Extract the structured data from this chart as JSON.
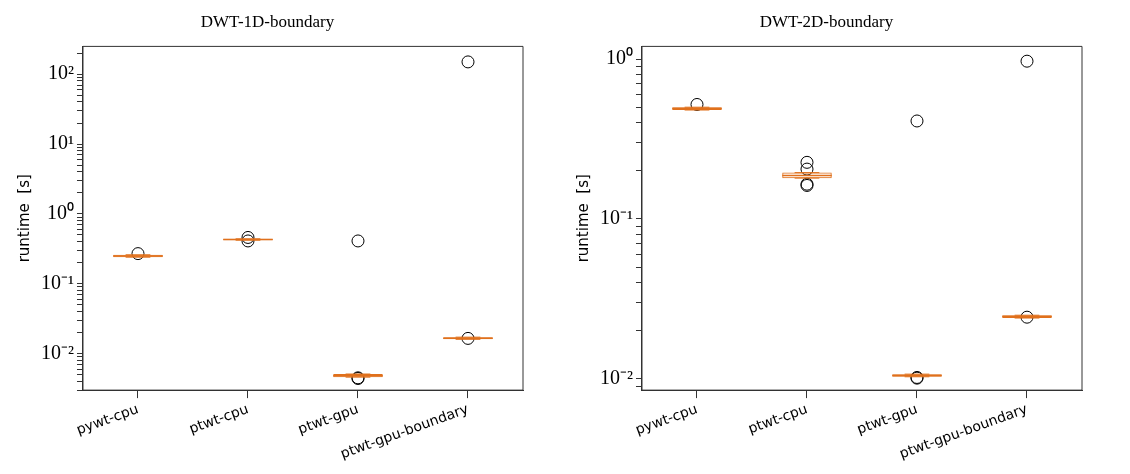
{
  "chart_data": [
    {
      "type": "box",
      "title": "DWT-1D-boundary",
      "ylabel": "runtime  [s]",
      "categories": [
        "pywt-cpu",
        "ptwt-cpu",
        "ptwt-gpu",
        "ptwt-gpu-boundary"
      ],
      "log": true,
      "grid": false,
      "legend": false,
      "ylim": [
        0.003,
        250
      ],
      "yticks": [
        {
          "value": 0.003,
          "label": null
        },
        {
          "value": 0.004,
          "label": null
        },
        {
          "value": 0.005,
          "label": null
        },
        {
          "value": 0.006,
          "label": null
        },
        {
          "value": 0.007,
          "label": null
        },
        {
          "value": 0.008,
          "label": null
        },
        {
          "value": 0.009,
          "label": null
        },
        {
          "value": 0.01,
          "label": "10⁻²"
        },
        {
          "value": 0.02,
          "label": null
        },
        {
          "value": 0.03,
          "label": null
        },
        {
          "value": 0.04,
          "label": null
        },
        {
          "value": 0.05,
          "label": null
        },
        {
          "value": 0.06,
          "label": null
        },
        {
          "value": 0.07,
          "label": null
        },
        {
          "value": 0.08,
          "label": null
        },
        {
          "value": 0.09,
          "label": null
        },
        {
          "value": 0.1,
          "label": "10⁻¹"
        },
        {
          "value": 0.2,
          "label": null
        },
        {
          "value": 0.3,
          "label": null
        },
        {
          "value": 0.4,
          "label": null
        },
        {
          "value": 0.5,
          "label": null
        },
        {
          "value": 0.6,
          "label": null
        },
        {
          "value": 0.7,
          "label": null
        },
        {
          "value": 0.8,
          "label": null
        },
        {
          "value": 0.9,
          "label": null
        },
        {
          "value": 1,
          "label": "10⁰"
        },
        {
          "value": 2,
          "label": null
        },
        {
          "value": 3,
          "label": null
        },
        {
          "value": 4,
          "label": null
        },
        {
          "value": 5,
          "label": null
        },
        {
          "value": 6,
          "label": null
        },
        {
          "value": 7,
          "label": null
        },
        {
          "value": 8,
          "label": null
        },
        {
          "value": 9,
          "label": null
        },
        {
          "value": 10,
          "label": "10¹"
        },
        {
          "value": 20,
          "label": null
        },
        {
          "value": 30,
          "label": null
        },
        {
          "value": 40,
          "label": null
        },
        {
          "value": 50,
          "label": null
        },
        {
          "value": 60,
          "label": null
        },
        {
          "value": 70,
          "label": null
        },
        {
          "value": 80,
          "label": null
        },
        {
          "value": 90,
          "label": null
        },
        {
          "value": 100,
          "label": "10²"
        },
        {
          "value": 200,
          "label": null
        }
      ],
      "series": [
        {
          "color": "#e0701c",
          "boxes": [
            {
              "low": 0.24,
              "q1": 0.24,
              "median": 0.25,
              "q3": 0.26,
              "high": 0.26,
              "outliers": [
                0.27
              ]
            },
            {
              "low": 0.42,
              "q1": 0.42,
              "median": 0.43,
              "q3": 0.44,
              "high": 0.44,
              "outliers": [
                0.46,
                0.41
              ]
            },
            {
              "low": 0.0046,
              "q1": 0.0046,
              "median": 0.0048,
              "q3": 0.0051,
              "high": 0.0051,
              "outliers": [
                0.0045,
                0.0044,
                0.41
              ]
            },
            {
              "low": 0.016,
              "q1": 0.016,
              "median": 0.0166,
              "q3": 0.0172,
              "high": 0.0172,
              "outliers": [
                0.0165,
                150
              ]
            }
          ]
        }
      ]
    },
    {
      "type": "box",
      "title": "DWT-2D-boundary",
      "ylabel": "runtime  [s]",
      "categories": [
        "pywt-cpu",
        "ptwt-cpu",
        "ptwt-gpu",
        "ptwt-gpu-boundary"
      ],
      "log": true,
      "grid": false,
      "legend": false,
      "ylim": [
        0.0085,
        1.2
      ],
      "yticks": [
        {
          "value": 0.009,
          "label": null
        },
        {
          "value": 0.01,
          "label": "10⁻²"
        },
        {
          "value": 0.02,
          "label": null
        },
        {
          "value": 0.03,
          "label": null
        },
        {
          "value": 0.04,
          "label": null
        },
        {
          "value": 0.05,
          "label": null
        },
        {
          "value": 0.06,
          "label": null
        },
        {
          "value": 0.07,
          "label": null
        },
        {
          "value": 0.08,
          "label": null
        },
        {
          "value": 0.09,
          "label": null
        },
        {
          "value": 0.1,
          "label": "10⁻¹"
        },
        {
          "value": 0.2,
          "label": null
        },
        {
          "value": 0.3,
          "label": null
        },
        {
          "value": 0.4,
          "label": null
        },
        {
          "value": 0.5,
          "label": null
        },
        {
          "value": 0.6,
          "label": null
        },
        {
          "value": 0.7,
          "label": null
        },
        {
          "value": 0.8,
          "label": null
        },
        {
          "value": 0.9,
          "label": null
        },
        {
          "value": 1,
          "label": "10⁰"
        }
      ],
      "series": [
        {
          "color": "#e0701c",
          "boxes": [
            {
              "low": 0.48,
              "q1": 0.48,
              "median": 0.49,
              "q3": 0.5,
              "high": 0.5,
              "outliers": [
                0.52
              ]
            },
            {
              "low": 0.18,
              "q1": 0.18,
              "median": 0.187,
              "q3": 0.195,
              "high": 0.195,
              "outliers": [
                0.226,
                0.205,
                0.165,
                0.162
              ]
            },
            {
              "low": 0.0103,
              "q1": 0.0103,
              "median": 0.0105,
              "q3": 0.0107,
              "high": 0.0107,
              "outliers": [
                0.0102,
                0.0101,
                0.41
              ]
            },
            {
              "low": 0.024,
              "q1": 0.024,
              "median": 0.0245,
              "q3": 0.025,
              "high": 0.025,
              "outliers": [
                0.0243,
                0.97
              ]
            }
          ]
        }
      ]
    }
  ]
}
